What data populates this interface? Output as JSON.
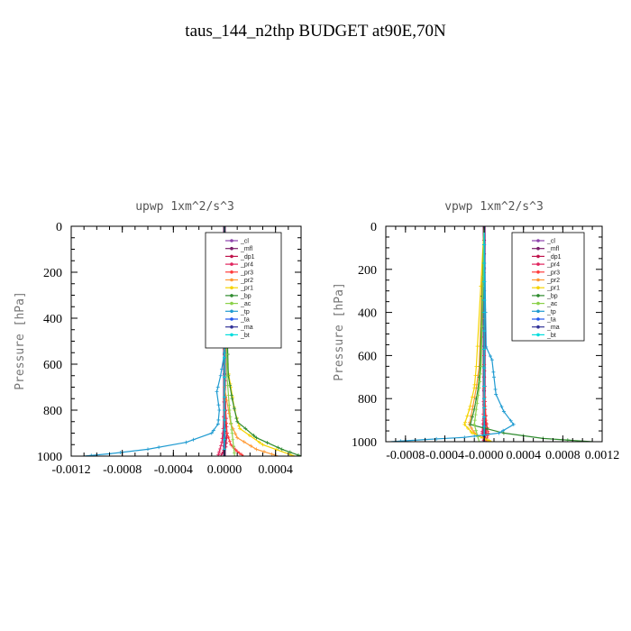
{
  "figure": {
    "title": "taus_144_n2thp  BUDGET at90E,70N"
  },
  "chart_data": [
    {
      "type": "line",
      "title": "upwp  1xm^2/s^3",
      "xlabel": "",
      "ylabel": "Pressure [hPa]",
      "xlim": [
        -0.0012,
        0.0006
      ],
      "ylim": [
        1000,
        0
      ],
      "xticks": [
        "-0.0012",
        "-0.0008",
        "-0.0004",
        "0.0000",
        "0.0004"
      ],
      "xtick_values": [
        -0.0012,
        -0.0008,
        -0.0004,
        0.0,
        0.0004
      ],
      "yticks": [
        "0",
        "200",
        "400",
        "600",
        "800",
        "1000"
      ],
      "ytick_values": [
        0,
        200,
        400,
        600,
        800,
        1000
      ],
      "legend_position": "top-right",
      "series": [
        {
          "name": "_cl",
          "color": "#8e44ad",
          "x": [
            0,
            0,
            0,
            0
          ],
          "y": [
            0,
            300,
            700,
            1000
          ]
        },
        {
          "name": "_mfl",
          "color": "#7b1d6a",
          "x": [
            0,
            0,
            0,
            0
          ],
          "y": [
            0,
            300,
            700,
            1000
          ]
        },
        {
          "name": "_dp1",
          "color": "#c0144c",
          "x": [
            0,
            0,
            1e-05,
            2e-05,
            1e-05,
            -3e-05
          ],
          "y": [
            0,
            600,
            800,
            900,
            960,
            1000
          ]
        },
        {
          "name": "_pr4",
          "color": "#e0245e",
          "x": [
            0,
            0,
            -1e-05,
            -2e-05,
            -4e-05,
            -5e-05
          ],
          "y": [
            0,
            700,
            880,
            940,
            980,
            1000
          ]
        },
        {
          "name": "_pr3",
          "color": "#ff3b3b",
          "x": [
            0,
            0,
            2e-05,
            5e-05,
            0.0001,
            0.00015
          ],
          "y": [
            0,
            750,
            900,
            950,
            980,
            1000
          ]
        },
        {
          "name": "_pr2",
          "color": "#ff9933",
          "x": [
            0,
            0,
            5e-05,
            0.0001,
            0.00025,
            0.00042
          ],
          "y": [
            0,
            700,
            860,
            920,
            970,
            1000
          ]
        },
        {
          "name": "_pr1",
          "color": "#f5d300",
          "x": [
            0,
            2e-05,
            5e-05,
            8e-05,
            0.00012,
            0.0003,
            0.00055
          ],
          "y": [
            0,
            600,
            700,
            800,
            880,
            950,
            1000
          ]
        },
        {
          "name": "_bp",
          "color": "#2e8b2e",
          "x": [
            0,
            3e-05,
            6e-05,
            0.0001,
            0.00025,
            0.00045,
            0.0006
          ],
          "y": [
            0,
            650,
            750,
            850,
            920,
            970,
            1000
          ]
        },
        {
          "name": "_ac",
          "color": "#8bd14a",
          "x": [
            0,
            2e-05,
            4e-05,
            6e-05,
            8e-05
          ],
          "y": [
            0,
            650,
            800,
            900,
            1000
          ]
        },
        {
          "name": "_tp",
          "color": "#1f9bd1",
          "x": [
            0,
            0,
            -3e-05,
            -6e-05,
            -4e-05,
            -5e-05,
            -0.0001,
            -0.0003,
            -0.0006,
            -0.0009,
            -0.0011
          ],
          "y": [
            0,
            550,
            650,
            720,
            800,
            860,
            900,
            940,
            970,
            990,
            1000
          ]
        },
        {
          "name": "_ta",
          "color": "#2255ee",
          "x": [
            0,
            0,
            0,
            0
          ],
          "y": [
            0,
            400,
            800,
            1000
          ]
        },
        {
          "name": "_ma",
          "color": "#333399",
          "x": [
            0,
            0,
            0,
            0
          ],
          "y": [
            0,
            400,
            800,
            1000
          ]
        },
        {
          "name": "_bt",
          "color": "#00dddd",
          "x": [
            0,
            0,
            0,
            0
          ],
          "y": [
            0,
            400,
            800,
            1000
          ]
        }
      ]
    },
    {
      "type": "line",
      "title": "vpwp  1xm^2/s^3",
      "xlabel": "",
      "ylabel": "Pressure [hPa]",
      "xlim": [
        -0.001,
        0.0012
      ],
      "ylim": [
        1000,
        0
      ],
      "xticks": [
        "-0.0008",
        "-0.0004",
        "-0.0000",
        "0.0004",
        "0.0008",
        "0.0012"
      ],
      "xtick_values": [
        -0.0008,
        -0.0004,
        0.0,
        0.0004,
        0.0008,
        0.0012
      ],
      "yticks": [
        "0",
        "200",
        "400",
        "600",
        "800",
        "1000"
      ],
      "ytick_values": [
        0,
        200,
        400,
        600,
        800,
        1000
      ],
      "legend_position": "top-right",
      "series": [
        {
          "name": "_cl",
          "color": "#8e44ad",
          "x": [
            0,
            0,
            0,
            0
          ],
          "y": [
            0,
            300,
            700,
            1000
          ]
        },
        {
          "name": "_mfl",
          "color": "#7b1d6a",
          "x": [
            0,
            0,
            0,
            0
          ],
          "y": [
            0,
            300,
            700,
            1000
          ]
        },
        {
          "name": "_dp1",
          "color": "#c0144c",
          "x": [
            0,
            0,
            1e-05,
            2e-05,
            0
          ],
          "y": [
            0,
            600,
            850,
            960,
            1000
          ]
        },
        {
          "name": "_pr4",
          "color": "#e0245e",
          "x": [
            0,
            0,
            -1e-05,
            -2e-05,
            0
          ],
          "y": [
            0,
            700,
            900,
            960,
            1000
          ]
        },
        {
          "name": "_pr3",
          "color": "#ff3b3b",
          "x": [
            0,
            0,
            2e-05,
            4e-05,
            2e-05
          ],
          "y": [
            0,
            750,
            900,
            960,
            1000
          ]
        },
        {
          "name": "_pr2",
          "color": "#ff9933",
          "x": [
            0,
            -5e-05,
            -8e-05,
            -0.00012,
            -0.00015,
            -0.0001,
            5e-05
          ],
          "y": [
            0,
            650,
            750,
            850,
            920,
            960,
            1000
          ]
        },
        {
          "name": "_pr1",
          "color": "#f5d300",
          "x": [
            0,
            -8e-05,
            -0.0001,
            -0.00015,
            -0.0002,
            -0.00012,
            8e-05
          ],
          "y": [
            0,
            650,
            750,
            850,
            920,
            960,
            1000
          ]
        },
        {
          "name": "_bp",
          "color": "#2e8b2e",
          "x": [
            0,
            -4e-05,
            -6e-05,
            -0.0001,
            -0.00014,
            0.0002,
            0.0006,
            0.0011
          ],
          "y": [
            0,
            650,
            750,
            850,
            920,
            960,
            985,
            1000
          ]
        },
        {
          "name": "_ac",
          "color": "#8bd14a",
          "x": [
            0,
            -3e-05,
            -5e-05,
            -8e-05,
            -0.0001,
            -5e-05
          ],
          "y": [
            0,
            650,
            750,
            850,
            920,
            1000
          ]
        },
        {
          "name": "_tp",
          "color": "#1f9bd1",
          "x": [
            0,
            2e-05,
            8e-05,
            0.0001,
            0.00012,
            0.0002,
            0.0003,
            0.00015,
            -0.0002,
            -0.0006,
            -0.00095
          ],
          "y": [
            0,
            560,
            620,
            700,
            780,
            860,
            920,
            960,
            980,
            990,
            1000
          ]
        },
        {
          "name": "_ta",
          "color": "#2255ee",
          "x": [
            0,
            0,
            0,
            0
          ],
          "y": [
            0,
            400,
            800,
            1000
          ]
        },
        {
          "name": "_ma",
          "color": "#333399",
          "x": [
            0,
            0,
            0,
            0
          ],
          "y": [
            0,
            400,
            800,
            1000
          ]
        },
        {
          "name": "_bt",
          "color": "#00dddd",
          "x": [
            0,
            0,
            0,
            0
          ],
          "y": [
            0,
            400,
            800,
            1000
          ]
        }
      ]
    }
  ]
}
